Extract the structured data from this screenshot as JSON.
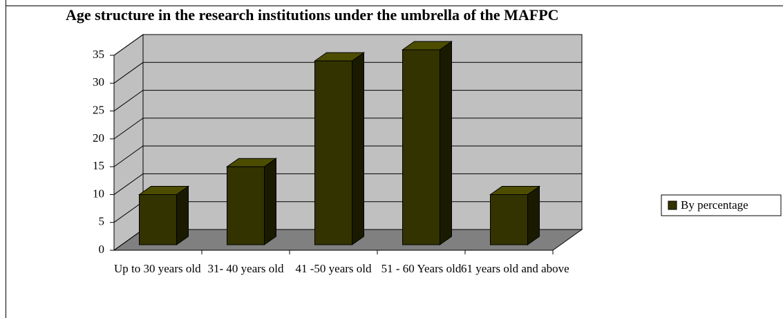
{
  "chart_data": {
    "type": "bar3d",
    "title": "Age structure in the research institutions under the umbrella of the MAFPC",
    "categories": [
      "Up to 30 years old",
      "31- 40 years old",
      "41 -50 years old",
      "51 - 60 Years old",
      "61 years old and above"
    ],
    "series": [
      {
        "name": "By percentage",
        "color": "#333300",
        "values": [
          9,
          14,
          33,
          35,
          9
        ]
      }
    ],
    "ylim": [
      0,
      35
    ],
    "yticks": [
      0,
      5,
      10,
      15,
      20,
      25,
      30,
      35
    ],
    "grid": true,
    "legend": "right"
  }
}
